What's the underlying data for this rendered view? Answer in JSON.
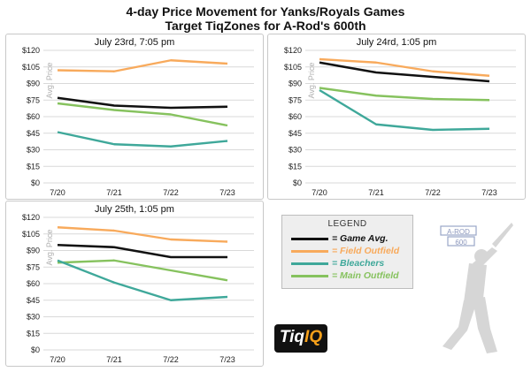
{
  "header": {
    "title": "4-day Price Movement for Yanks/Royals Games",
    "subtitle": "Target TiqZones for A-Rod's 600th"
  },
  "colors": {
    "game_avg": "#111111",
    "field_outfield": "#f8aa5c",
    "bleachers": "#3fa89a",
    "main_outfield": "#86c25e"
  },
  "legend": {
    "title": "LEGEND",
    "items": [
      {
        "label": "= Game Avg.",
        "color": "#111111"
      },
      {
        "label": "= Field Outfield",
        "color": "#f8aa5c"
      },
      {
        "label": "= Bleachers",
        "color": "#3fa89a"
      },
      {
        "label": "= Main Outfield",
        "color": "#86c25e"
      }
    ]
  },
  "logo": {
    "text_a": "Tiq",
    "text_b": "IQ"
  },
  "watermark": {
    "text": "A-ROD 600",
    "icon": "batter-silhouette-icon"
  },
  "chart_data": [
    {
      "type": "line",
      "title": "July 23rd, 7:05 pm",
      "ylabel": "Avg. Price",
      "categories": [
        "7/20",
        "7/21",
        "7/22",
        "7/23"
      ],
      "ylim": [
        0,
        120
      ],
      "yticks": [
        "$0",
        "$15",
        "$30",
        "$45",
        "$60",
        "$75",
        "$90",
        "$105",
        "$120"
      ],
      "grid": true,
      "series": [
        {
          "key": "field_outfield",
          "values": [
            102,
            101,
            111,
            108
          ]
        },
        {
          "key": "game_avg",
          "values": [
            77,
            70,
            68,
            69
          ]
        },
        {
          "key": "main_outfield",
          "values": [
            72,
            66,
            62,
            52
          ]
        },
        {
          "key": "bleachers",
          "values": [
            46,
            35,
            33,
            38
          ]
        }
      ]
    },
    {
      "type": "line",
      "title": "July 24rd, 1:05 pm",
      "ylabel": "Avg. Price",
      "categories": [
        "7/20",
        "7/21",
        "7/22",
        "7/23"
      ],
      "ylim": [
        0,
        120
      ],
      "yticks": [
        "$0",
        "$15",
        "$30",
        "$45",
        "$60",
        "$75",
        "$90",
        "$105",
        "$120"
      ],
      "grid": true,
      "series": [
        {
          "key": "field_outfield",
          "values": [
            112,
            109,
            101,
            97
          ]
        },
        {
          "key": "game_avg",
          "values": [
            109,
            100,
            96,
            92
          ]
        },
        {
          "key": "main_outfield",
          "values": [
            86,
            79,
            76,
            75
          ]
        },
        {
          "key": "bleachers",
          "values": [
            84,
            53,
            48,
            49
          ]
        }
      ]
    },
    {
      "type": "line",
      "title": "July 25th, 1:05 pm",
      "ylabel": "Avg. Price",
      "categories": [
        "7/20",
        "7/21",
        "7/22",
        "7/23"
      ],
      "ylim": [
        0,
        120
      ],
      "yticks": [
        "$0",
        "$15",
        "$30",
        "$45",
        "$60",
        "$75",
        "$90",
        "$105",
        "$120"
      ],
      "grid": true,
      "series": [
        {
          "key": "field_outfield",
          "values": [
            111,
            108,
            100,
            98
          ]
        },
        {
          "key": "game_avg",
          "values": [
            95,
            93,
            84,
            84
          ]
        },
        {
          "key": "main_outfield",
          "values": [
            79,
            81,
            72,
            63
          ]
        },
        {
          "key": "bleachers",
          "values": [
            81,
            61,
            45,
            48
          ]
        }
      ]
    }
  ]
}
